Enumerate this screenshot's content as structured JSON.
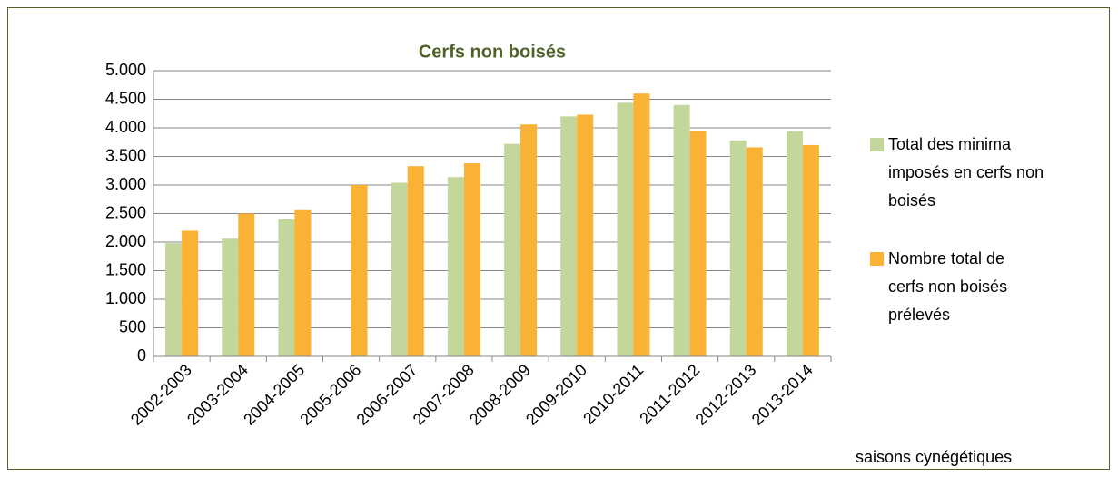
{
  "chart_data": {
    "type": "bar",
    "title": "Cerfs non boisés",
    "x_label": "saisons cynégétiques",
    "categories": [
      "2002-2003",
      "2003-2004",
      "2004-2005",
      "2005-2006",
      "2006-2007",
      "2007-2008",
      "2008-2009",
      "2009-2010",
      "2010-2011",
      "2011-2012",
      "2012-2013",
      "2013-2014"
    ],
    "series": [
      {
        "name": "Total des minima imposés en cerfs non boisés",
        "color": "#c3d69b",
        "values": [
          1980,
          2060,
          2400,
          null,
          3040,
          3140,
          3720,
          4200,
          4440,
          4400,
          3780,
          3940
        ]
      },
      {
        "name": "Nombre total de cerfs non boisés prélevés",
        "color": "#f9b233",
        "values": [
          2200,
          2500,
          2560,
          3000,
          3330,
          3380,
          4060,
          4230,
          4600,
          3950,
          3660,
          3700
        ]
      }
    ],
    "ylim": [
      0,
      5000
    ],
    "yticks": [
      0,
      500,
      {
        "value": 1000,
        "label": "1.000"
      },
      {
        "value": 1500,
        "label": "1.500"
      },
      {
        "value": 2000,
        "label": "2.000"
      },
      {
        "value": 2500,
        "label": "2.500"
      },
      {
        "value": 3000,
        "label": "3.000"
      },
      {
        "value": 3500,
        "label": "3.500"
      },
      {
        "value": 4000,
        "label": "4.000"
      },
      {
        "value": 4500,
        "label": "4.500"
      },
      {
        "value": 5000,
        "label": "5.000"
      }
    ],
    "grid": true,
    "legend": "right"
  }
}
